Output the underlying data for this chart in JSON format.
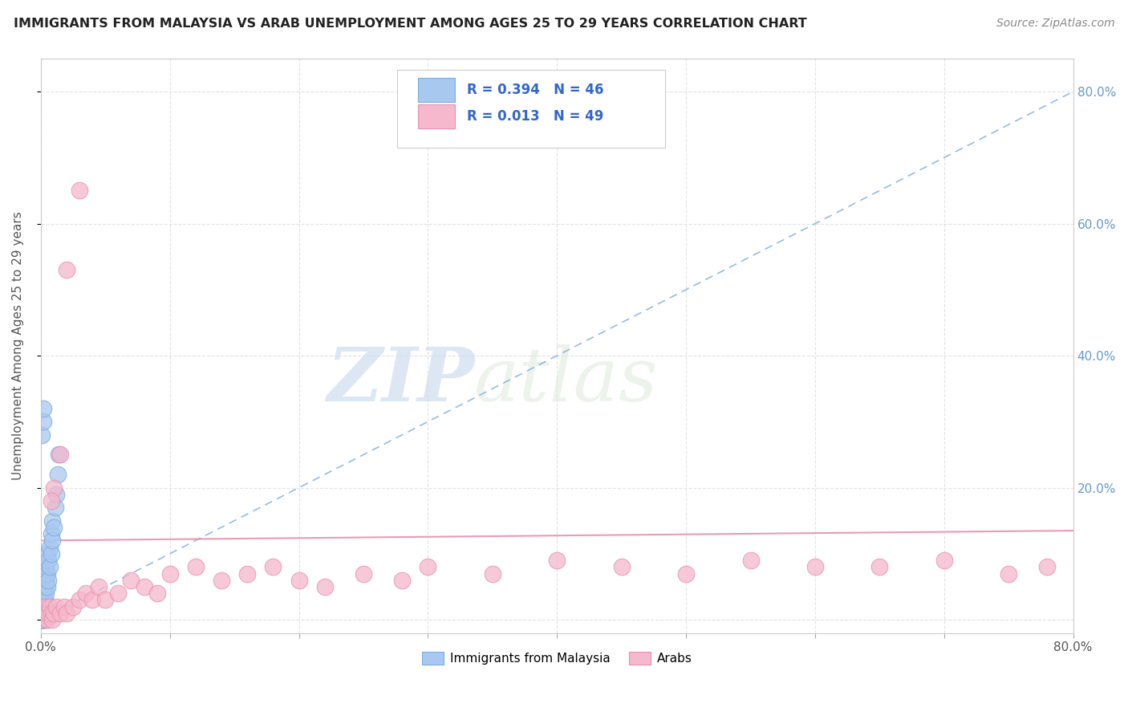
{
  "title": "IMMIGRANTS FROM MALAYSIA VS ARAB UNEMPLOYMENT AMONG AGES 25 TO 29 YEARS CORRELATION CHART",
  "source": "Source: ZipAtlas.com",
  "ylabel": "Unemployment Among Ages 25 to 29 years",
  "legend_r1": "R = 0.394   N = 46",
  "legend_r2": "R = 0.013   N = 49",
  "legend_label1": "Immigrants from Malaysia",
  "legend_label2": "Arabs",
  "blue_color": "#a8c8f0",
  "blue_edge": "#7aabdf",
  "pink_color": "#f5b8cc",
  "pink_edge": "#e890aa",
  "trend_blue_color": "#7aabdf",
  "trend_pink_color": "#e890aa",
  "watermark_zip": "ZIP",
  "watermark_atlas": "atlas",
  "xlim": [
    0.0,
    0.8
  ],
  "ylim": [
    -0.02,
    0.85
  ],
  "background_color": "#ffffff",
  "grid_color": "#dddddd",
  "blue_x": [
    0.001,
    0.001,
    0.001,
    0.002,
    0.002,
    0.002,
    0.002,
    0.003,
    0.003,
    0.003,
    0.003,
    0.004,
    0.004,
    0.004,
    0.005,
    0.005,
    0.005,
    0.006,
    0.006,
    0.007,
    0.007,
    0.008,
    0.008,
    0.009,
    0.009,
    0.01,
    0.011,
    0.012,
    0.013,
    0.014,
    0.001,
    0.002,
    0.002,
    0.003,
    0.003,
    0.004,
    0.005,
    0.001,
    0.002,
    0.003,
    0.001,
    0.002,
    0.001,
    0.002,
    0.001,
    0.001
  ],
  "blue_y": [
    0.0,
    0.01,
    0.02,
    0.01,
    0.02,
    0.03,
    0.04,
    0.02,
    0.03,
    0.05,
    0.07,
    0.04,
    0.06,
    0.08,
    0.05,
    0.07,
    0.1,
    0.06,
    0.09,
    0.08,
    0.11,
    0.1,
    0.13,
    0.12,
    0.15,
    0.14,
    0.17,
    0.19,
    0.22,
    0.25,
    0.28,
    0.3,
    0.32,
    0.0,
    0.01,
    0.02,
    0.01,
    0.0,
    0.01,
    0.0,
    0.0,
    0.0,
    0.01,
    0.0,
    0.0,
    0.0
  ],
  "pink_x": [
    0.001,
    0.002,
    0.003,
    0.004,
    0.005,
    0.006,
    0.007,
    0.008,
    0.009,
    0.01,
    0.012,
    0.015,
    0.018,
    0.02,
    0.025,
    0.03,
    0.035,
    0.04,
    0.045,
    0.05,
    0.06,
    0.07,
    0.08,
    0.09,
    0.1,
    0.12,
    0.14,
    0.16,
    0.18,
    0.2,
    0.22,
    0.25,
    0.28,
    0.3,
    0.35,
    0.4,
    0.45,
    0.5,
    0.55,
    0.6,
    0.65,
    0.7,
    0.75,
    0.78,
    0.02,
    0.03,
    0.01,
    0.015,
    0.008
  ],
  "pink_y": [
    0.0,
    0.01,
    0.02,
    0.01,
    0.0,
    0.01,
    0.02,
    0.01,
    0.0,
    0.01,
    0.02,
    0.01,
    0.02,
    0.01,
    0.02,
    0.03,
    0.04,
    0.03,
    0.05,
    0.03,
    0.04,
    0.06,
    0.05,
    0.04,
    0.07,
    0.08,
    0.06,
    0.07,
    0.08,
    0.06,
    0.05,
    0.07,
    0.06,
    0.08,
    0.07,
    0.09,
    0.08,
    0.07,
    0.09,
    0.08,
    0.08,
    0.09,
    0.07,
    0.08,
    0.53,
    0.65,
    0.2,
    0.25,
    0.18
  ],
  "pink_trend_y0": 0.12,
  "pink_trend_y1": 0.135
}
